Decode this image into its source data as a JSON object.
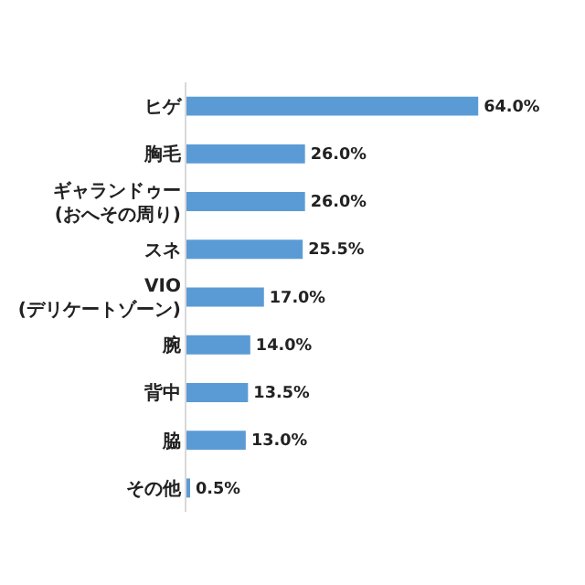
{
  "chart_data": {
    "type": "bar",
    "orientation": "horizontal",
    "categories": [
      "ヒゲ",
      "胸毛",
      "ギャランドゥー\n(おへその周り)",
      "スネ",
      "VIO\n(デリケートゾーン)",
      "腕",
      "背中",
      "脇",
      "その他"
    ],
    "values": [
      64.0,
      26.0,
      26.0,
      25.5,
      17.0,
      14.0,
      13.5,
      13.0,
      0.5
    ],
    "value_labels": [
      "64.0%",
      "26.0%",
      "26.0%",
      "25.5%",
      "17.0%",
      "14.0%",
      "13.5%",
      "13.0%",
      "0.5%"
    ],
    "color": "#5b9bd5",
    "tick_labels": "y",
    "legend": false
  }
}
